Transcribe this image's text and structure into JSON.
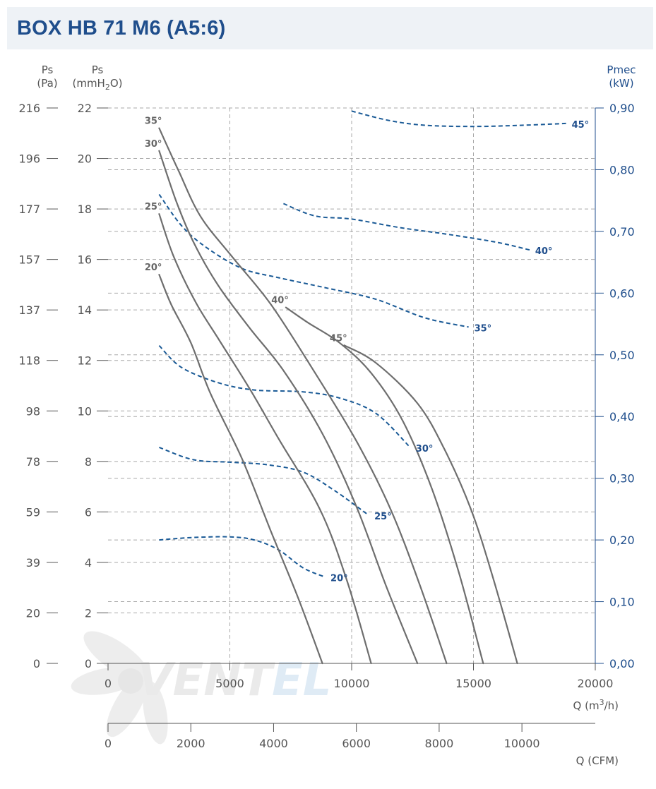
{
  "title": "BOX HB 71 M6 (A5:6)",
  "watermark": {
    "text_a": "VENT",
    "text_b": "EL",
    "color_a": "#e8e8e8",
    "color_b": "#dce9f5"
  },
  "colors": {
    "title": "#1f4e8c",
    "pressure_curve": "#6e6e6e",
    "power_curve": "#1a5a96",
    "grid": "#a8a8a8",
    "right_axis": "#1f4e8c",
    "axis": "#555555"
  },
  "chart_data": {
    "type": "line",
    "title": "BOX HB 71 M6 (A5:6)",
    "grid": true,
    "axes": {
      "left_pa": {
        "label_line1": "Ps",
        "label_line2": "(Pa)",
        "ticks": [
          "0",
          "20",
          "39",
          "59",
          "78",
          "98",
          "118",
          "137",
          "157",
          "177",
          "196",
          "216"
        ]
      },
      "left_mmh2o": {
        "label_line1": "Ps",
        "label_line2_a": "(mmH",
        "label_line2_sub": "2",
        "label_line2_b": "O)",
        "range": [
          0,
          22
        ],
        "ticks": [
          "0",
          "2",
          "4",
          "6",
          "8",
          "10",
          "12",
          "14",
          "16",
          "18",
          "20",
          "22"
        ]
      },
      "right_kw": {
        "label_line1": "Pmec",
        "label_line2": "(kW)",
        "range": [
          0,
          0.9
        ],
        "ticks": [
          "0,00",
          "0,10",
          "0,20",
          "0,30",
          "0,40",
          "0,50",
          "0,60",
          "0,70",
          "0,80",
          "0,90"
        ]
      },
      "x_m3h": {
        "label_a": "Q (m",
        "label_sup": "3",
        "label_b": "/h)",
        "range": [
          0,
          20000
        ],
        "ticks": [
          "0",
          "5000",
          "10000",
          "15000",
          "20000"
        ]
      },
      "x_cfm": {
        "label": "Q (CFM)",
        "range": [
          0,
          11772
        ],
        "ticks": [
          "0",
          "2000",
          "4000",
          "6000",
          "8000",
          "10000"
        ]
      }
    },
    "pressure_series": [
      {
        "name": "20°",
        "label": "20°",
        "points": [
          [
            2100,
            15.4
          ],
          [
            2600,
            14.2
          ],
          [
            3400,
            12.7
          ],
          [
            4200,
            10.7
          ],
          [
            5500,
            8.1
          ],
          [
            6700,
            5.2
          ],
          [
            7800,
            2.6
          ],
          [
            8800,
            0
          ]
        ]
      },
      {
        "name": "25°",
        "label": "25°",
        "points": [
          [
            2100,
            17.8
          ],
          [
            2700,
            16.1
          ],
          [
            3600,
            14.3
          ],
          [
            4500,
            12.9
          ],
          [
            5800,
            10.9
          ],
          [
            7000,
            8.9
          ],
          [
            8700,
            6.1
          ],
          [
            9800,
            3.3
          ],
          [
            10800,
            0
          ]
        ]
      },
      {
        "name": "30°",
        "label": "30°",
        "points": [
          [
            2100,
            20.3
          ],
          [
            2800,
            18.3
          ],
          [
            3500,
            16.7
          ],
          [
            4500,
            15
          ],
          [
            5800,
            13.3
          ],
          [
            7200,
            11.6
          ],
          [
            8800,
            9.1
          ],
          [
            10200,
            6.2
          ],
          [
            11400,
            3.1
          ],
          [
            12700,
            0
          ]
        ]
      },
      {
        "name": "35°",
        "label": "35°",
        "points": [
          [
            2100,
            21.2
          ],
          [
            2900,
            19.5
          ],
          [
            3800,
            17.7
          ],
          [
            5100,
            16.1
          ],
          [
            6700,
            14.2
          ],
          [
            8500,
            11.5
          ],
          [
            10200,
            8.8
          ],
          [
            11600,
            6.1
          ],
          [
            12800,
            3.1
          ],
          [
            13900,
            0
          ]
        ]
      },
      {
        "name": "40°",
        "label": "40°",
        "points": [
          [
            7300,
            14.1
          ],
          [
            8200,
            13.5
          ],
          [
            9500,
            12.7
          ],
          [
            10800,
            11.5
          ],
          [
            12100,
            9.6
          ],
          [
            13300,
            6.9
          ],
          [
            14400,
            3.6
          ],
          [
            15400,
            0
          ]
        ]
      },
      {
        "name": "45°",
        "label": "45°",
        "points": [
          [
            9700,
            12.6
          ],
          [
            11000,
            11.9
          ],
          [
            12700,
            10.3
          ],
          [
            13800,
            8.5
          ],
          [
            14900,
            6.1
          ],
          [
            15800,
            3.4
          ],
          [
            16800,
            0
          ]
        ]
      }
    ],
    "power_series": [
      {
        "name": "20°",
        "label": "20°",
        "points": [
          [
            2100,
            0.2
          ],
          [
            3500,
            0.204
          ],
          [
            5000,
            0.205
          ],
          [
            6000,
            0.2
          ],
          [
            7000,
            0.184
          ],
          [
            8000,
            0.155
          ],
          [
            8900,
            0.14
          ]
        ]
      },
      {
        "name": "25°",
        "label": "25°",
        "points": [
          [
            2100,
            0.35
          ],
          [
            3500,
            0.33
          ],
          [
            5000,
            0.326
          ],
          [
            6500,
            0.322
          ],
          [
            8000,
            0.31
          ],
          [
            9300,
            0.28
          ],
          [
            10700,
            0.24
          ]
        ]
      },
      {
        "name": "30°",
        "label": "30°",
        "points": [
          [
            2100,
            0.515
          ],
          [
            3000,
            0.48
          ],
          [
            4500,
            0.455
          ],
          [
            6000,
            0.443
          ],
          [
            8000,
            0.44
          ],
          [
            9500,
            0.43
          ],
          [
            11000,
            0.405
          ],
          [
            12400,
            0.35
          ]
        ]
      },
      {
        "name": "35°",
        "label": "35°",
        "points": [
          [
            2100,
            0.76
          ],
          [
            3000,
            0.71
          ],
          [
            4000,
            0.675
          ],
          [
            5500,
            0.64
          ],
          [
            7000,
            0.625
          ],
          [
            9000,
            0.608
          ],
          [
            11000,
            0.59
          ],
          [
            13000,
            0.56
          ],
          [
            14800,
            0.545
          ]
        ]
      },
      {
        "name": "40°",
        "label": "40°",
        "points": [
          [
            7200,
            0.745
          ],
          [
            8500,
            0.725
          ],
          [
            10000,
            0.72
          ],
          [
            12000,
            0.706
          ],
          [
            14000,
            0.695
          ],
          [
            16000,
            0.682
          ],
          [
            17300,
            0.67
          ]
        ]
      },
      {
        "name": "45°",
        "label": "45°",
        "points": [
          [
            10000,
            0.895
          ],
          [
            11500,
            0.88
          ],
          [
            13000,
            0.872
          ],
          [
            15000,
            0.87
          ],
          [
            17000,
            0.872
          ],
          [
            18800,
            0.875
          ]
        ]
      }
    ]
  }
}
